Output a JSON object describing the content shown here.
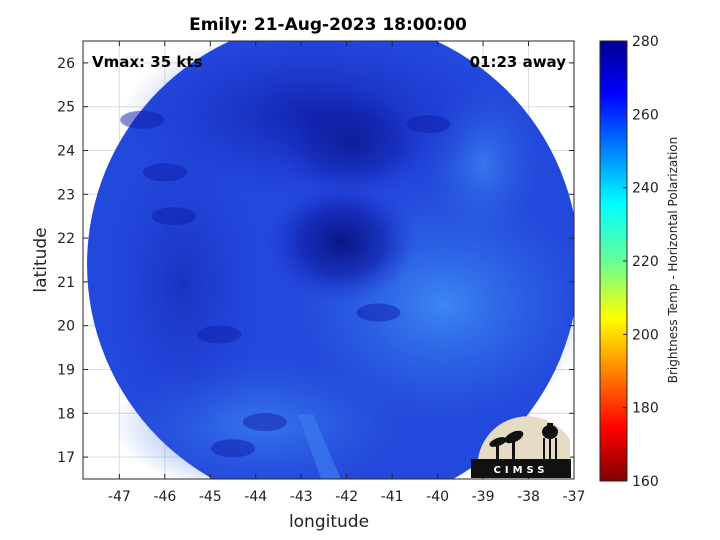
{
  "chart_data": {
    "type": "heatmap",
    "title": "Emily: 21-Aug-2023 18:00:00",
    "xlabel": "longitude",
    "ylabel": "latitude",
    "xlim": [
      -47.8,
      -37
    ],
    "ylim": [
      16.5,
      26.5
    ],
    "x_ticks": [
      -47,
      -46,
      -45,
      -44,
      -43,
      -42,
      -41,
      -40,
      -39,
      -38,
      -37
    ],
    "y_ticks": [
      17,
      18,
      19,
      20,
      21,
      22,
      23,
      24,
      25,
      26
    ],
    "grid": true,
    "annotations": {
      "vmax": "Vmax: 35 kts",
      "time_away": "01:23 away"
    },
    "swath_center": {
      "lon": -42.3,
      "lat": 21.4
    },
    "storm_center": {
      "lon": -42.1,
      "lat": 21.9
    },
    "colorbar": {
      "label": "Brightness Temp - Horizontal Polarization",
      "range": [
        160,
        280
      ],
      "ticks": [
        280,
        260,
        240,
        220,
        200,
        180,
        160
      ],
      "colormap": "jet"
    }
  },
  "logo": {
    "text": "CIMSS"
  }
}
